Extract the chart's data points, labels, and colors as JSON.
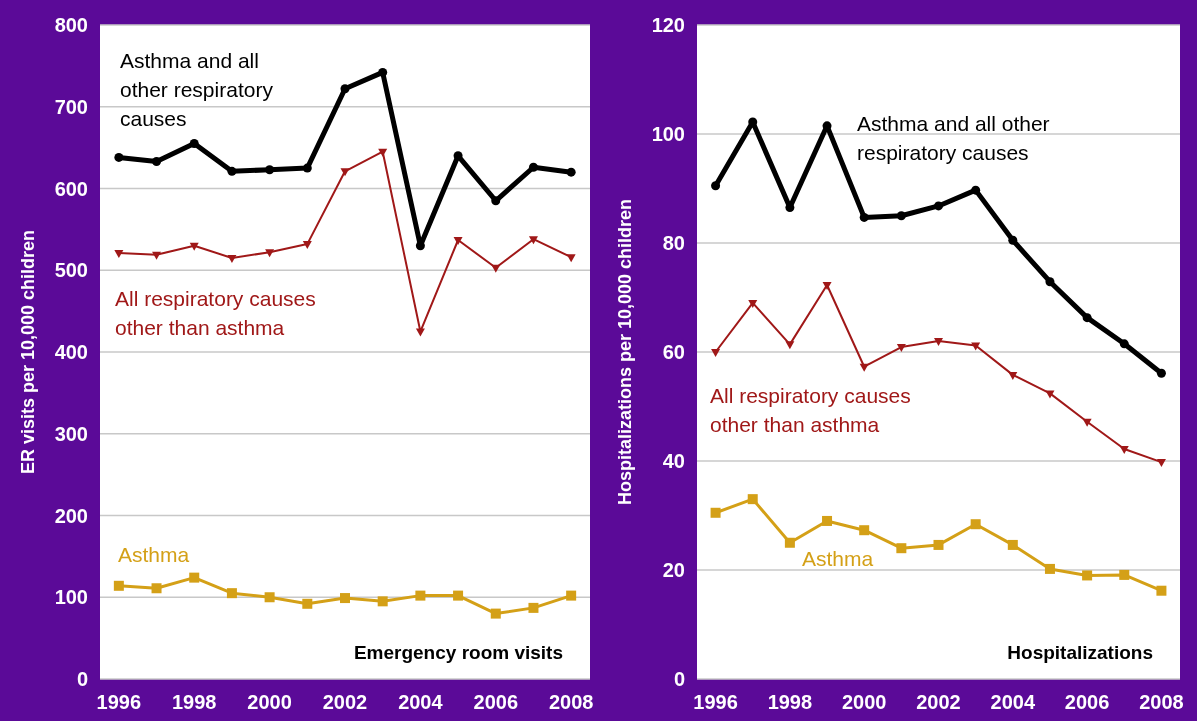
{
  "chart_data": [
    {
      "type": "line",
      "title": "Emergency room visits",
      "ylabel": "ER visits per 10,000 children",
      "x": [
        1996,
        1997,
        1998,
        1999,
        2000,
        2001,
        2002,
        2003,
        2004,
        2005,
        2006,
        2007,
        2008
      ],
      "xlim": [
        1995.5,
        2008.5
      ],
      "xticks": [
        1996,
        1998,
        2000,
        2002,
        2004,
        2006,
        2008
      ],
      "ylim": [
        0,
        800
      ],
      "yticks": [
        0,
        100,
        200,
        300,
        400,
        500,
        600,
        700,
        800
      ],
      "grid": "y",
      "series": [
        {
          "name": "Asthma and all other respiratory causes",
          "color": "#000000",
          "marker": "circle",
          "values": [
            638,
            633,
            655,
            621,
            623,
            625,
            722,
            742,
            530,
            640,
            585,
            626,
            620
          ]
        },
        {
          "name": "All respiratory causes other than asthma",
          "color": "#a01818",
          "marker": "triangle",
          "values": [
            521,
            519,
            530,
            515,
            522,
            532,
            621,
            645,
            425,
            537,
            503,
            538,
            516
          ]
        },
        {
          "name": "Asthma",
          "color": "#d4a017",
          "marker": "square",
          "values": [
            114,
            111,
            124,
            105,
            100,
            92,
            99,
            95,
            102,
            102,
            80,
            87,
            102
          ]
        }
      ]
    },
    {
      "type": "line",
      "title": "Hospitalizations",
      "ylabel": "Hospitalizations per 10,000 children",
      "x": [
        1996,
        1997,
        1998,
        1999,
        2000,
        2001,
        2002,
        2003,
        2004,
        2005,
        2006,
        2007,
        2008
      ],
      "xlim": [
        1995.5,
        2008.5
      ],
      "xticks": [
        1996,
        1998,
        2000,
        2002,
        2004,
        2006,
        2008
      ],
      "ylim": [
        0,
        120
      ],
      "yticks": [
        0,
        20,
        40,
        60,
        80,
        100,
        120
      ],
      "grid": "y",
      "series": [
        {
          "name": "Asthma and all other respiratory causes",
          "color": "#000000",
          "marker": "circle",
          "values": [
            90.5,
            102.2,
            86.5,
            101.5,
            84.7,
            85,
            86.8,
            89.7,
            80.5,
            72.9,
            66.3,
            61.5,
            56.1
          ]
        },
        {
          "name": "All respiratory causes other than asthma",
          "color": "#a01818",
          "marker": "triangle",
          "values": [
            60,
            69,
            61.4,
            72.3,
            57.3,
            60.9,
            62,
            61.2,
            55.8,
            52.4,
            47.2,
            42.2,
            39.8
          ]
        },
        {
          "name": "Asthma",
          "color": "#d4a017",
          "marker": "square",
          "values": [
            30.5,
            33,
            25,
            29,
            27.3,
            24,
            24.6,
            28.4,
            24.6,
            20.2,
            19,
            19.1,
            16.2
          ]
        }
      ]
    }
  ]
}
